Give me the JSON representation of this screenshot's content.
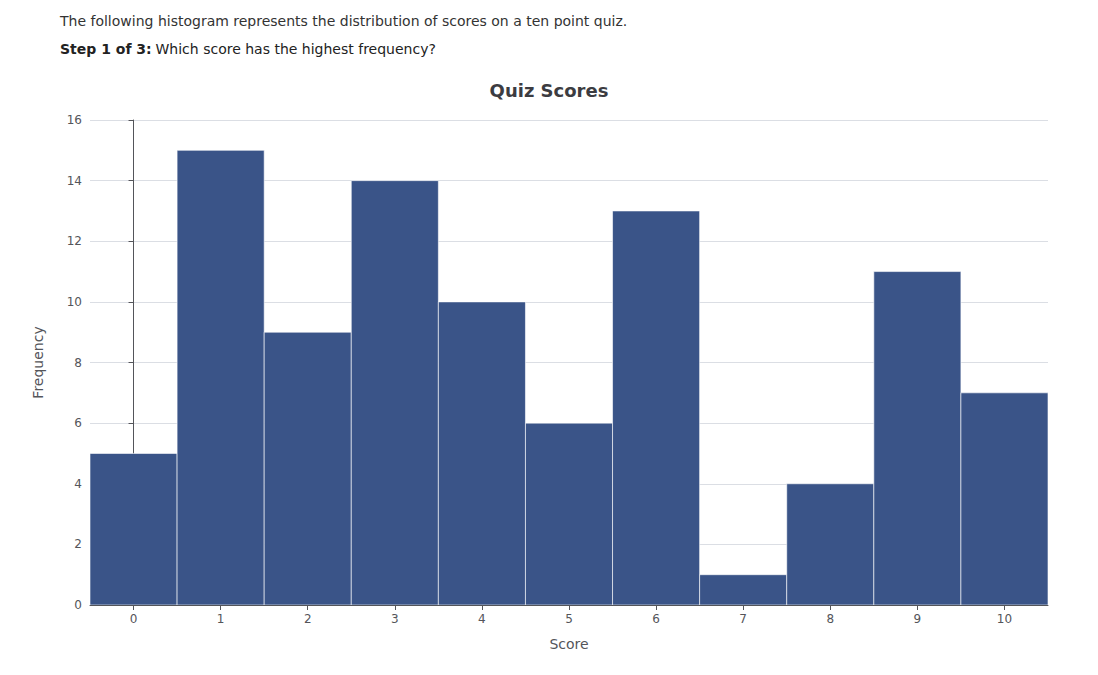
{
  "chart_data": {
    "type": "bar",
    "title": "Quiz Scores",
    "xlabel": "Score",
    "ylabel": "Frequency",
    "x": [
      0,
      1,
      2,
      3,
      4,
      5,
      6,
      7,
      8,
      9,
      10
    ],
    "values": [
      5,
      15,
      9,
      14,
      10,
      6,
      13,
      1,
      4,
      11,
      7
    ],
    "color": "#3a5488",
    "xlim": [
      -0.5,
      10.5
    ],
    "xticks": [
      0,
      1,
      2,
      3,
      4,
      5,
      6,
      7,
      8,
      9,
      10
    ],
    "ylim": [
      0,
      16
    ],
    "yticks": [
      0,
      2,
      4,
      6,
      8,
      10,
      12,
      14,
      16
    ],
    "grid": true,
    "annotations": [
      "The following histogram represents the distribution of scores on a ten point quiz.",
      "Step 1 of 3:",
      "Which score has the highest frequency?"
    ]
  }
}
